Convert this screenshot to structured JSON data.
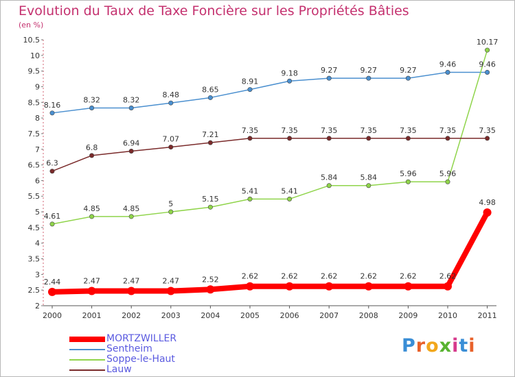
{
  "header": {
    "title": "Evolution du Taux de Taxe Foncière sur les Propriétés Bâties",
    "unit": "(en %)"
  },
  "brand": {
    "letters": [
      "P",
      "r",
      "o",
      "x",
      "i",
      "t",
      "i"
    ],
    "colors": [
      "#3a8ed6",
      "#e8612a",
      "#f2a71b",
      "#58b330",
      "#d63a8c",
      "#3a8ed6",
      "#e8612a"
    ]
  },
  "chart_data": {
    "type": "line",
    "title": "Evolution du Taux de Taxe Foncière sur les Propriétés Bâties",
    "ylabel": "(en %)",
    "xlabel": "",
    "x": [
      "2000",
      "2001",
      "2002",
      "2003",
      "2004",
      "2005",
      "2006",
      "2007",
      "2008",
      "2009",
      "2010",
      "2011"
    ],
    "ylim": [
      2,
      10.5
    ],
    "yticks": [
      "2",
      "2.5",
      "3",
      "3.5",
      "4",
      "4.5",
      "5",
      "5.5",
      "6",
      "6.5",
      "7",
      "7.5",
      "8",
      "8.5",
      "9",
      "9.5",
      "10",
      "10.5"
    ],
    "grid": false,
    "legend_position": "bottom-left",
    "series": [
      {
        "name": "MORTZWILLER",
        "color": "#ff0000",
        "values": [
          2.44,
          2.47,
          2.47,
          2.47,
          2.52,
          2.62,
          2.62,
          2.62,
          2.62,
          2.62,
          2.62,
          4.98
        ],
        "labels": [
          "2.44",
          "2.47",
          "2.47",
          "2.47",
          "2.52",
          "2.62",
          "2.62",
          "2.62",
          "2.62",
          "2.62",
          "2.62",
          "4.98"
        ]
      },
      {
        "name": "Sentheim",
        "color": "#4a8fcf",
        "values": [
          8.16,
          8.32,
          8.32,
          8.48,
          8.65,
          8.91,
          9.18,
          9.27,
          9.27,
          9.27,
          9.46,
          9.46
        ],
        "labels": [
          "8.16",
          "8.32",
          "8.32",
          "8.48",
          "8.65",
          "8.91",
          "9.18",
          "9.27",
          "9.27",
          "9.27",
          "9.46",
          "9.46"
        ]
      },
      {
        "name": "Soppe-le-Haut",
        "color": "#8fd44a",
        "values": [
          4.61,
          4.85,
          4.85,
          5,
          5.15,
          5.41,
          5.41,
          5.84,
          5.84,
          5.96,
          5.96,
          10.17
        ],
        "labels": [
          "4.61",
          "4.85",
          "4.85",
          "5",
          "5.15",
          "5.41",
          "5.41",
          "5.84",
          "5.84",
          "5.96",
          "5.96",
          "10.17"
        ]
      },
      {
        "name": "Lauw",
        "color": "#7a2a2a",
        "values": [
          6.3,
          6.8,
          6.94,
          7.07,
          7.21,
          7.35,
          7.35,
          7.35,
          7.35,
          7.35,
          7.35,
          7.35
        ],
        "labels": [
          "6.3",
          "6.8",
          "6.94",
          "7.07",
          "7.21",
          "7.35",
          "7.35",
          "7.35",
          "7.35",
          "7.35",
          "7.35",
          "7.35"
        ]
      }
    ]
  }
}
